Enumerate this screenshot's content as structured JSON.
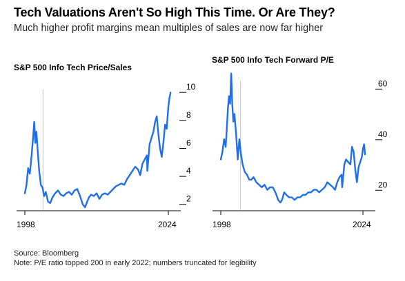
{
  "title": "Tech Valuations Aren't So High This Time. Or Are They?",
  "subtitle": "Much higher profit margins mean multiples of sales are now far higher",
  "source": "Source: Bloomberg",
  "note": "Note: P/E ratio topped 200 in early 2022; numbers truncated for legibility",
  "colors": {
    "line": "#1e6fe8",
    "marker": "#cccccc",
    "axis": "#000000"
  },
  "chart_data": [
    {
      "type": "line",
      "title": "S&P 500 Info Tech Price/Sales",
      "x_ticks": [
        "1998",
        "2024"
      ],
      "y_ticks": [
        2,
        4,
        6,
        8,
        10
      ],
      "ylim": [
        1.2,
        10.5
      ],
      "xlim": [
        1998,
        2024.5
      ],
      "marker_line_x": 2001.3,
      "series": [
        {
          "x": [
            1998.0,
            1998.3,
            1998.6,
            1998.9,
            1999.2,
            1999.5,
            1999.7,
            1999.9,
            2000.1,
            2000.3,
            2000.6,
            2000.9,
            2001.2,
            2001.5,
            2001.8,
            2002.2,
            2002.6,
            2003.0,
            2003.5,
            2004.0,
            2004.5,
            2005.0,
            2005.5,
            2006.0,
            2006.5,
            2007.0,
            2007.5,
            2008.0,
            2008.5,
            2008.9,
            2009.2,
            2009.6,
            2010.0,
            2010.5,
            2011.0,
            2011.5,
            2012.0,
            2012.5,
            2013.0,
            2013.5,
            2014.0,
            2014.5,
            2015.0,
            2015.5,
            2016.0,
            2016.5,
            2017.0,
            2017.5,
            2018.0,
            2018.5,
            2018.9,
            2019.3,
            2019.7,
            2020.1,
            2020.2,
            2020.6,
            2020.9,
            2021.3,
            2021.6,
            2021.9,
            2022.2,
            2022.5,
            2022.8,
            2023.1,
            2023.4,
            2023.7,
            2024.0,
            2024.2,
            2024.4
          ],
          "values": [
            2.4,
            3.0,
            4.2,
            3.8,
            5.0,
            6.4,
            7.5,
            6.0,
            6.8,
            5.6,
            4.0,
            3.0,
            2.8,
            2.2,
            2.5,
            1.8,
            1.7,
            2.1,
            2.4,
            2.6,
            2.3,
            2.2,
            2.4,
            2.5,
            2.3,
            2.6,
            2.7,
            2.2,
            1.6,
            1.4,
            1.7,
            2.1,
            2.3,
            2.2,
            2.4,
            2.0,
            2.3,
            2.4,
            2.3,
            2.5,
            2.7,
            2.9,
            3.0,
            3.1,
            3.0,
            3.4,
            3.7,
            4.0,
            4.3,
            4.1,
            3.7,
            4.5,
            4.8,
            5.1,
            4.0,
            5.9,
            6.3,
            6.8,
            7.5,
            7.9,
            6.6,
            5.6,
            5.0,
            6.0,
            7.3,
            7.0,
            8.6,
            9.2,
            9.6
          ]
        }
      ]
    },
    {
      "type": "line",
      "title": "S&P 500 Info Tech Forward P/E",
      "x_ticks": [
        "1998",
        "2024"
      ],
      "y_ticks": [
        20,
        40,
        60
      ],
      "ylim": [
        10,
        65
      ],
      "xlim": [
        1998,
        2024.5
      ],
      "marker_line_x": 2001.6,
      "series": [
        {
          "x": [
            1998.0,
            1998.3,
            1998.6,
            1998.9,
            1999.1,
            1999.3,
            1999.5,
            1999.7,
            1999.9,
            2000.1,
            2000.3,
            2000.5,
            2000.8,
            2001.1,
            2001.4,
            2001.7,
            2002.0,
            2002.4,
            2002.8,
            2003.2,
            2003.6,
            2004.0,
            2004.5,
            2005.0,
            2005.5,
            2006.0,
            2006.5,
            2007.0,
            2007.5,
            2008.0,
            2008.5,
            2008.9,
            2009.2,
            2009.6,
            2010.0,
            2010.5,
            2011.0,
            2011.5,
            2012.0,
            2012.5,
            2013.0,
            2013.5,
            2014.0,
            2014.5,
            2015.0,
            2015.5,
            2016.0,
            2016.5,
            2017.0,
            2017.5,
            2018.0,
            2018.5,
            2018.9,
            2019.3,
            2019.7,
            2020.1,
            2020.2,
            2020.6,
            2020.9,
            2021.3,
            2021.7,
            2022.0,
            2022.3,
            2022.6,
            2022.9,
            2023.2,
            2023.5,
            2023.8,
            2024.0,
            2024.2,
            2024.4
          ],
          "values": [
            30,
            33,
            38,
            35,
            42,
            50,
            55,
            52,
            64,
            52,
            45,
            48,
            40,
            30,
            38,
            32,
            28,
            25,
            24,
            22,
            22,
            23,
            21,
            20,
            19,
            20,
            18,
            19,
            19,
            17,
            14,
            13,
            14,
            17,
            16,
            15,
            15,
            14,
            15,
            15,
            16,
            16,
            17,
            17,
            18,
            18,
            17,
            18,
            19,
            21,
            20,
            19,
            18,
            21,
            23,
            24,
            19,
            28,
            30,
            29,
            28,
            35,
            33,
            26,
            21,
            27,
            29,
            31,
            34,
            36,
            32
          ]
        }
      ]
    }
  ]
}
